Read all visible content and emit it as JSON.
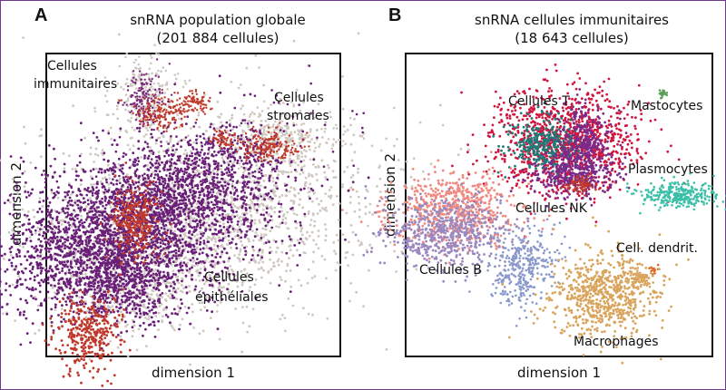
{
  "panels": [
    {
      "letter": "A",
      "title_line1": "snRNA population globale",
      "title_line2": "(201 884 cellules)",
      "xlabel": "dimension 1",
      "ylabel": "dimension 2"
    },
    {
      "letter": "B",
      "title_line1": "snRNA cellules immunitaires",
      "title_line2": "(18 643 cellules)",
      "xlabel": "dimension 1",
      "ylabel": "dimension 2"
    }
  ],
  "chart_data": [
    {
      "type": "scatter",
      "title": "snRNA population globale (201 884 cellules)",
      "xlabel": "dimension 1",
      "ylabel": "dimension 2",
      "grid": false,
      "annotations": [
        {
          "id": "immune",
          "lines": [
            "Cellules",
            "immunitaires"
          ],
          "color": "#111111"
        },
        {
          "id": "stromal",
          "lines": [
            "Cellules",
            "stromales"
          ],
          "color": "#111111"
        },
        {
          "id": "epithelial",
          "lines": [
            "Cellules",
            "épithéliales"
          ],
          "color": "#111111"
        }
      ],
      "clusters": [
        {
          "name": "Cellules immunitaires",
          "colors": [
            "#c0392b",
            "#7a2a7a",
            "#cfc8c0"
          ]
        },
        {
          "name": "Cellules stromales",
          "colors": [
            "#c0392b",
            "#cfc8c0"
          ]
        },
        {
          "name": "Cellules épithéliales",
          "colors": [
            "#6a1f78",
            "#c0392b",
            "#cfc8c0"
          ]
        }
      ]
    },
    {
      "type": "scatter",
      "title": "snRNA cellules immunitaires (18 643 cellules)",
      "xlabel": "dimension 1",
      "ylabel": "dimension 2",
      "grid": false,
      "annotations": [
        {
          "id": "t",
          "lines": [
            "Cellules T"
          ]
        },
        {
          "id": "nk",
          "lines": [
            "Cellules NK"
          ]
        },
        {
          "id": "mast",
          "lines": [
            "Mastocytes"
          ]
        },
        {
          "id": "plasma",
          "lines": [
            "Plasmocytes"
          ]
        },
        {
          "id": "dendrit",
          "lines": [
            "Cell. dendrit."
          ]
        },
        {
          "id": "b",
          "lines": [
            "Cellules B"
          ]
        },
        {
          "id": "macro",
          "lines": [
            "Macrophages"
          ]
        }
      ],
      "clusters": [
        {
          "name": "Cellules T",
          "colors": [
            "#d0153f",
            "#1f7a78",
            "#7a2a8a"
          ]
        },
        {
          "name": "Cellules NK",
          "colors": [
            "#7a2a8a",
            "#c0392b"
          ]
        },
        {
          "name": "Mastocytes",
          "colors": [
            "#5aa05a"
          ]
        },
        {
          "name": "Plasmocytes",
          "colors": [
            "#3dbfa8"
          ]
        },
        {
          "name": "Cell. dendrit.",
          "colors": [
            "#e06a2a"
          ]
        },
        {
          "name": "Cellules B",
          "colors": [
            "#f08a80",
            "#9a88c0",
            "#8898cc"
          ]
        },
        {
          "name": "Macrophages",
          "colors": [
            "#d9a45c"
          ]
        }
      ]
    }
  ]
}
